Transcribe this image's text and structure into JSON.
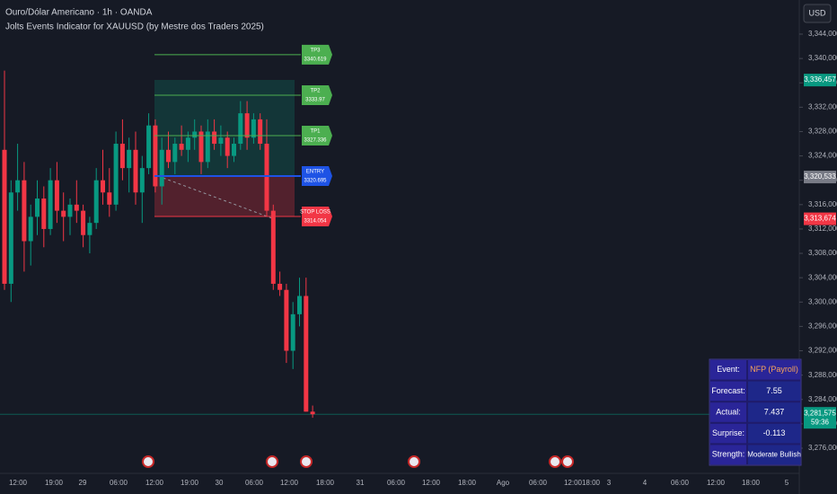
{
  "chart_data": {
    "type": "candlestick",
    "title": "Ouro/Dólar Americano · 1h · OANDA",
    "subtitle": "Jolts Events Indicator for XAUUSD (by Mestre dos Traders 2025)",
    "currency": "USD",
    "up_color": "#089981",
    "down_color": "#f23645",
    "ylim": [
      3276,
      3344
    ],
    "yticks": [
      {
        "value": 3344,
        "label": "3,344,000"
      },
      {
        "value": 3340,
        "label": "3,340,000"
      },
      {
        "value": 3336,
        "label": "3,336,000"
      },
      {
        "value": 3332,
        "label": "3,332,000"
      },
      {
        "value": 3328,
        "label": "3,328,000"
      },
      {
        "value": 3324,
        "label": "3,324,000"
      },
      {
        "value": 3320,
        "label": "3,320,000"
      },
      {
        "value": 3316,
        "label": "3,316,000"
      },
      {
        "value": 3312,
        "label": "3,312,000"
      },
      {
        "value": 3308,
        "label": "3,308,000"
      },
      {
        "value": 3304,
        "label": "3,304,000"
      },
      {
        "value": 3300,
        "label": "3,300,000"
      },
      {
        "value": 3296,
        "label": "3,296,000"
      },
      {
        "value": 3292,
        "label": "3,292,000"
      },
      {
        "value": 3288,
        "label": "3,288,000"
      },
      {
        "value": 3284,
        "label": "3,284,000"
      },
      {
        "value": 3280,
        "label": "3,280,000"
      },
      {
        "value": 3276,
        "label": "3,276,000"
      }
    ],
    "xtick_labels": [
      "12:00",
      "19:00",
      "29",
      "06:00",
      "12:00",
      "19:00",
      "30",
      "06:00",
      "12:00",
      "18:00",
      "31",
      "06:00",
      "12:00",
      "18:00",
      "Ago",
      "06:00",
      "12:00",
      "18:00",
      "3",
      "4",
      "06:00",
      "12:00",
      "18:00",
      "5"
    ],
    "ohlc": [
      [
        3325,
        3338,
        3302,
        3303
      ],
      [
        3303,
        3320,
        3300,
        3318
      ],
      [
        3318,
        3326,
        3315,
        3320
      ],
      [
        3320,
        3323,
        3305,
        3310
      ],
      [
        3310,
        3316,
        3306,
        3314
      ],
      [
        3314,
        3320,
        3311,
        3317
      ],
      [
        3317,
        3319,
        3309,
        3312
      ],
      [
        3312,
        3322,
        3311,
        3320
      ],
      [
        3320,
        3323,
        3313,
        3315
      ],
      [
        3315,
        3318,
        3310,
        3314
      ],
      [
        3314,
        3317,
        3311,
        3316
      ],
      [
        3316,
        3320,
        3313,
        3315
      ],
      [
        3315,
        3316,
        3309,
        3311
      ],
      [
        3311,
        3314,
        3308,
        3313
      ],
      [
        3313,
        3322,
        3312,
        3320
      ],
      [
        3320,
        3325,
        3316,
        3318
      ],
      [
        3318,
        3322,
        3314,
        3316
      ],
      [
        3316,
        3328,
        3315,
        3326
      ],
      [
        3326,
        3330,
        3320,
        3322
      ],
      [
        3322,
        3327,
        3318,
        3325
      ],
      [
        3325,
        3328,
        3316,
        3318
      ],
      [
        3318,
        3324,
        3313,
        3322
      ],
      [
        3322,
        3331,
        3321,
        3329
      ],
      [
        3329,
        3330,
        3318,
        3319
      ],
      [
        3319,
        3327,
        3316,
        3325
      ],
      [
        3325,
        3328,
        3322,
        3323
      ],
      [
        3323,
        3327,
        3321,
        3326
      ],
      [
        3326,
        3329,
        3324,
        3325
      ],
      [
        3325,
        3328,
        3323,
        3327
      ],
      [
        3327,
        3330,
        3325,
        3328
      ],
      [
        3328,
        3329,
        3321,
        3323
      ],
      [
        3323,
        3330,
        3322,
        3328
      ],
      [
        3328,
        3330,
        3325,
        3326
      ],
      [
        3326,
        3329,
        3324,
        3327
      ],
      [
        3327,
        3328,
        3322,
        3324
      ],
      [
        3324,
        3327,
        3323,
        3326
      ],
      [
        3326,
        3333,
        3325,
        3331
      ],
      [
        3331,
        3333,
        3325,
        3327
      ],
      [
        3327,
        3331,
        3326,
        3330
      ],
      [
        3330,
        3331,
        3325,
        3326
      ],
      [
        3326,
        3330,
        3314,
        3315
      ],
      [
        3315,
        3316,
        3302,
        3303
      ],
      [
        3303,
        3305,
        3301,
        3302
      ],
      [
        3302,
        3303,
        3290,
        3292
      ],
      [
        3292,
        3300,
        3289,
        3298
      ],
      [
        3298,
        3304,
        3296,
        3301
      ],
      [
        3301,
        3304,
        3282,
        3282
      ],
      [
        3282,
        3283,
        3281,
        3281.575
      ]
    ],
    "levels": [
      {
        "label": "TP3",
        "value": 3340.619,
        "color": "#4caf50"
      },
      {
        "label": "TP2",
        "value": 3333.97,
        "color": "#4caf50"
      },
      {
        "label": "TP1",
        "value": 3327.336,
        "color": "#4caf50"
      },
      {
        "label": "ENTRY",
        "value": 3320.695,
        "color": "#1e53e5"
      },
      {
        "label": "STOP LOSS",
        "value": 3314.054,
        "color": "#f23645"
      }
    ],
    "price_tags": [
      {
        "value": 3336.457,
        "label": "3,336,457",
        "color": "#089981"
      },
      {
        "value": 3320.533,
        "label": "3,320,533",
        "color": "#787b86"
      },
      {
        "value": 3313.674,
        "label": "3,313,674",
        "color": "#f23645"
      }
    ],
    "last_price": {
      "value": 3281.575,
      "label": "3,281,575",
      "countdown": "59:36",
      "color": "#089981"
    },
    "table": [
      [
        "Event:",
        "NFP (Payroll)"
      ],
      [
        "Forecast:",
        "7.55"
      ],
      [
        "Actual:",
        "7.437"
      ],
      [
        "Surprise:",
        "-0.113"
      ],
      [
        "Strength:",
        "Moderate Bullish"
      ]
    ]
  }
}
